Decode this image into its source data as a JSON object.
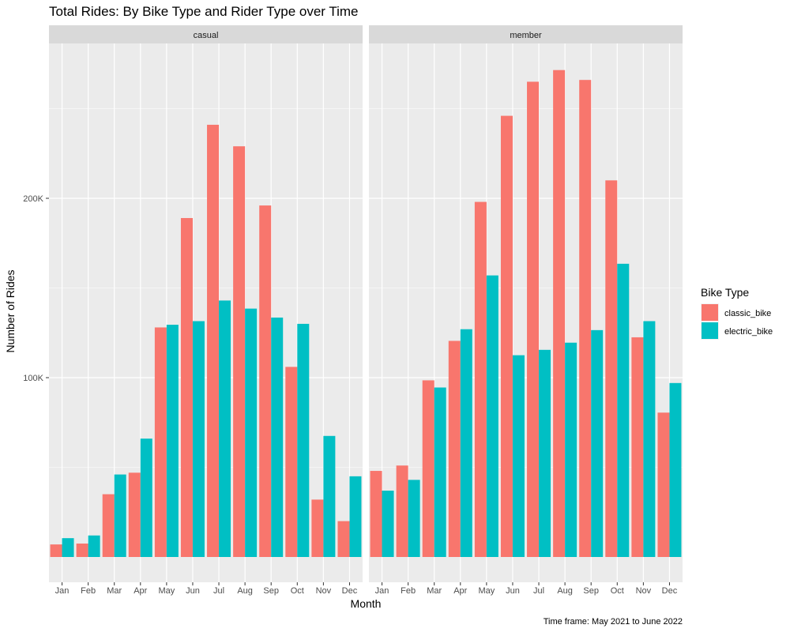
{
  "chart_data": {
    "type": "bar",
    "title": "Total Rides: By Bike Type and Rider Type over Time",
    "xlabel": "Month",
    "ylabel": "Number of Rides",
    "caption": "Time frame: May 2021 to June 2022",
    "ylim": [
      0,
      290000
    ],
    "yticks": [
      100000,
      200000
    ],
    "ytick_labels": [
      "100K",
      "200K"
    ],
    "grid": true,
    "facet_var": "rider type",
    "categories": [
      "Jan",
      "Feb",
      "Mar",
      "Apr",
      "May",
      "Jun",
      "Jul",
      "Aug",
      "Sep",
      "Oct",
      "Nov",
      "Dec"
    ],
    "legend": {
      "title": "Bike Type",
      "position": "right",
      "entries": [
        {
          "name": "classic_bike",
          "color": "#F8766D"
        },
        {
          "name": "electric_bike",
          "color": "#00BFC4"
        }
      ]
    },
    "facets": [
      {
        "label": "casual",
        "series": [
          {
            "name": "classic_bike",
            "values": [
              7000,
              7500,
              35000,
              47000,
              128000,
              189000,
              241000,
              229000,
              196000,
              106000,
              32000,
              20000
            ]
          },
          {
            "name": "electric_bike",
            "values": [
              10500,
              12000,
              46000,
              66000,
              129500,
              131500,
              143000,
              138500,
              133500,
              130000,
              67500,
              45000
            ]
          }
        ]
      },
      {
        "label": "member",
        "series": [
          {
            "name": "classic_bike",
            "values": [
              48000,
              51000,
              98500,
              120500,
              198000,
              246000,
              265000,
              271500,
              266000,
              210000,
              122500,
              80500
            ]
          },
          {
            "name": "electric_bike",
            "values": [
              37000,
              43000,
              94500,
              127000,
              157000,
              112500,
              115500,
              119500,
              126500,
              163500,
              131500,
              97000
            ]
          }
        ]
      }
    ]
  }
}
